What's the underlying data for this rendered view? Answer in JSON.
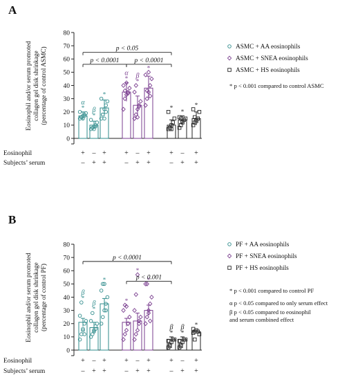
{
  "colors": {
    "teal": "#2e8b8b",
    "purple": "#7a3e8f",
    "black": "#222222"
  },
  "chart_data": [
    {
      "panel_label": "A",
      "type": "bar",
      "ylabel_lines": [
        "Eosinophil and/or serum promoted",
        "collagen gel disk shrinkage",
        "(percentage of control ASMC)"
      ],
      "ylim": [
        0,
        80
      ],
      "yticks": [
        0,
        10,
        20,
        30,
        40,
        50,
        60,
        70,
        80
      ],
      "rows": {
        "eosinophil_label": "Eosinophil",
        "serum_label": "Subjects’ serum"
      },
      "legend": [
        {
          "label": "ASMC + AA eosinophils",
          "marker": "circle",
          "color": "teal"
        },
        {
          "label": "ASMC + SNEA eosinophils",
          "marker": "diamond",
          "color": "purple"
        },
        {
          "label": "ASMC + HS eosinophils",
          "marker": "square",
          "color": "black"
        }
      ],
      "footnotes": [
        "* p < 0.001 compared to control ASMC"
      ],
      "bars": [
        {
          "group": 0,
          "eosinophil": "+",
          "serum": "–",
          "mean": 17,
          "sem": 3,
          "sig": [
            "α",
            "*"
          ],
          "points": [
            15,
            16,
            17,
            18,
            19,
            20,
            16,
            15,
            17
          ]
        },
        {
          "group": 0,
          "eosinophil": "–",
          "serum": "+",
          "mean": 10,
          "sem": 3,
          "sig": [
            "β",
            "*"
          ],
          "points": [
            7,
            8,
            9,
            10,
            12,
            14,
            8,
            7,
            9
          ]
        },
        {
          "group": 0,
          "eosinophil": "+",
          "serum": "+",
          "mean": 23,
          "sem": 6,
          "sig": [
            "*"
          ],
          "points": [
            15,
            18,
            22,
            25,
            28,
            30,
            18,
            15,
            20
          ]
        },
        {
          "group": 1,
          "eosinophil": "+",
          "serum": "–",
          "mean": 35,
          "sem": 7,
          "sig": [
            "α",
            "*"
          ],
          "points": [
            22,
            30,
            33,
            35,
            38,
            40,
            36,
            42,
            34
          ]
        },
        {
          "group": 1,
          "eosinophil": "–",
          "serum": "+",
          "mean": 25,
          "sem": 7,
          "sig": [
            "β",
            "*"
          ],
          "points": [
            15,
            18,
            22,
            25,
            28,
            35,
            40,
            16,
            24
          ]
        },
        {
          "group": 1,
          "eosinophil": "+",
          "serum": "+",
          "mean": 38,
          "sem": 9,
          "sig": [
            "*"
          ],
          "points": [
            25,
            30,
            35,
            40,
            45,
            48,
            36,
            50,
            32
          ]
        },
        {
          "group": 2,
          "eosinophil": "+",
          "serum": "–",
          "mean": 10,
          "sem": 4,
          "sig": [
            "*"
          ],
          "points": [
            7,
            8,
            10,
            12,
            15,
            20,
            8,
            7
          ]
        },
        {
          "group": 2,
          "eosinophil": "–",
          "serum": "+",
          "mean": 14,
          "sem": 3,
          "sig": [
            "*"
          ],
          "points": [
            8,
            10,
            12,
            14,
            15,
            16,
            15,
            13
          ]
        },
        {
          "group": 2,
          "eosinophil": "+",
          "serum": "+",
          "mean": 15,
          "sem": 5,
          "sig": [
            "*"
          ],
          "points": [
            10,
            12,
            14,
            15,
            20,
            22,
            16,
            13,
            15
          ]
        }
      ],
      "brackets": [
        {
          "from_bar": 0,
          "to_bar": 6,
          "y": 65,
          "label": "p < 0.05"
        },
        {
          "from_bar": 0,
          "to_bar": 3,
          "y": 56,
          "label": "p < 0.0001"
        },
        {
          "from_bar": 3,
          "to_bar": 6,
          "y": 56,
          "label": "p < 0.0001"
        }
      ]
    },
    {
      "panel_label": "B",
      "type": "bar",
      "ylabel_lines": [
        "Eosinophil and/or serum promoted",
        "collagen gel disk shrinkage",
        "(percentage of control PF)"
      ],
      "ylim": [
        0,
        80
      ],
      "yticks": [
        0,
        10,
        20,
        30,
        40,
        50,
        60,
        70,
        80
      ],
      "rows": {
        "eosinophil_label": "Eosinophil",
        "serum_label": "Subjects’ serum"
      },
      "legend": [
        {
          "label": "PF + AA eosinophils",
          "marker": "circle",
          "color": "teal"
        },
        {
          "label": "PF + SNEA eosinophils",
          "marker": "diamond",
          "color": "purple"
        },
        {
          "label": "PF + HS eosinophils",
          "marker": "square",
          "color": "black"
        }
      ],
      "footnotes": [
        "* p < 0.001 compared to control PF",
        "α p < 0.05 compared to only serum effect",
        "β p < 0.05 compared to eosinophil",
        "and serum combined effect"
      ],
      "bars": [
        {
          "group": 0,
          "eosinophil": "+",
          "serum": "–",
          "mean": 21,
          "sem": 3,
          "sig": [
            "β",
            "*"
          ],
          "points": [
            8,
            12,
            15,
            20,
            22,
            26,
            36,
            16,
            12
          ]
        },
        {
          "group": 0,
          "eosinophil": "–",
          "serum": "+",
          "mean": 17,
          "sem": 4,
          "sig": [
            "β",
            "*"
          ],
          "points": [
            10,
            12,
            15,
            18,
            20,
            22,
            28,
            14,
            16
          ]
        },
        {
          "group": 0,
          "eosinophil": "+",
          "serum": "+",
          "mean": 35,
          "sem": 4,
          "sig": [
            "*"
          ],
          "points": [
            20,
            25,
            30,
            35,
            40,
            45,
            50,
            50,
            30
          ]
        },
        {
          "group": 1,
          "eosinophil": "+",
          "serum": "–",
          "mean": 21,
          "sem": 3,
          "sig": [
            "*"
          ],
          "points": [
            8,
            12,
            15,
            20,
            25,
            30,
            34,
            33,
            20
          ]
        },
        {
          "group": 1,
          "eosinophil": "–",
          "serum": "+",
          "mean": 22,
          "sem": 6,
          "sig": [
            "*"
          ],
          "points": [
            8,
            12,
            15,
            20,
            25,
            30,
            42,
            57,
            22
          ]
        },
        {
          "group": 1,
          "eosinophil": "+",
          "serum": "+",
          "mean": 30,
          "sem": 4,
          "sig": [
            "*"
          ],
          "points": [
            20,
            25,
            30,
            35,
            40,
            50,
            50,
            28,
            22
          ]
        },
        {
          "group": 2,
          "eosinophil": "+",
          "serum": "–",
          "mean": 8,
          "sem": 2,
          "sig": [
            "β",
            "*"
          ],
          "points": [
            2,
            4,
            6,
            8,
            8,
            7,
            3
          ]
        },
        {
          "group": 2,
          "eosinophil": "–",
          "serum": "+",
          "mean": 8,
          "sem": 2,
          "sig": [
            "β",
            "*"
          ],
          "points": [
            2,
            4,
            6,
            8,
            8,
            7,
            3
          ]
        },
        {
          "group": 2,
          "eosinophil": "+",
          "serum": "+",
          "mean": 14,
          "sem": 1,
          "sig": [
            "*"
          ],
          "points": [
            13,
            14,
            15,
            14,
            12,
            16,
            8
          ]
        }
      ],
      "brackets": [
        {
          "from_bar": 0,
          "to_bar": 6,
          "y": 67,
          "label": "p < 0.0001"
        },
        {
          "from_bar": 3,
          "to_bar": 6,
          "y": 52,
          "label": "p < 0.001"
        }
      ]
    }
  ]
}
